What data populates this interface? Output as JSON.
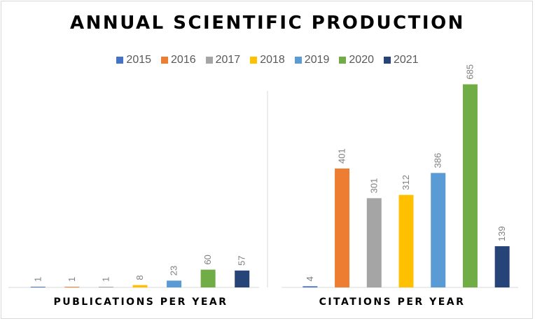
{
  "title": "ANNUAL SCIENTIFIC PRODUCTION",
  "legend": [
    {
      "label": "2015",
      "color": "#4472C4"
    },
    {
      "label": "2016",
      "color": "#ED7D31"
    },
    {
      "label": "2017",
      "color": "#A5A5A5"
    },
    {
      "label": "2018",
      "color": "#FFC000"
    },
    {
      "label": "2019",
      "color": "#5B9BD5"
    },
    {
      "label": "2020",
      "color": "#70AD47"
    },
    {
      "label": "2021",
      "color": "#264478"
    }
  ],
  "chart_data": [
    {
      "type": "bar",
      "xlabel": "PUBLICATIONS PER YEAR",
      "categories": [
        "2015",
        "2016",
        "2017",
        "2018",
        "2019",
        "2020",
        "2021"
      ],
      "values": [
        1,
        1,
        1,
        8,
        23,
        60,
        57
      ],
      "ylim": [
        0,
        750
      ]
    },
    {
      "type": "bar",
      "xlabel": "CITATIONS PER YEAR",
      "categories": [
        "2015",
        "2016",
        "2017",
        "2018",
        "2019",
        "2020",
        "2021"
      ],
      "values": [
        4,
        401,
        301,
        312,
        386,
        685,
        139
      ],
      "ylim": [
        0,
        750
      ]
    }
  ]
}
